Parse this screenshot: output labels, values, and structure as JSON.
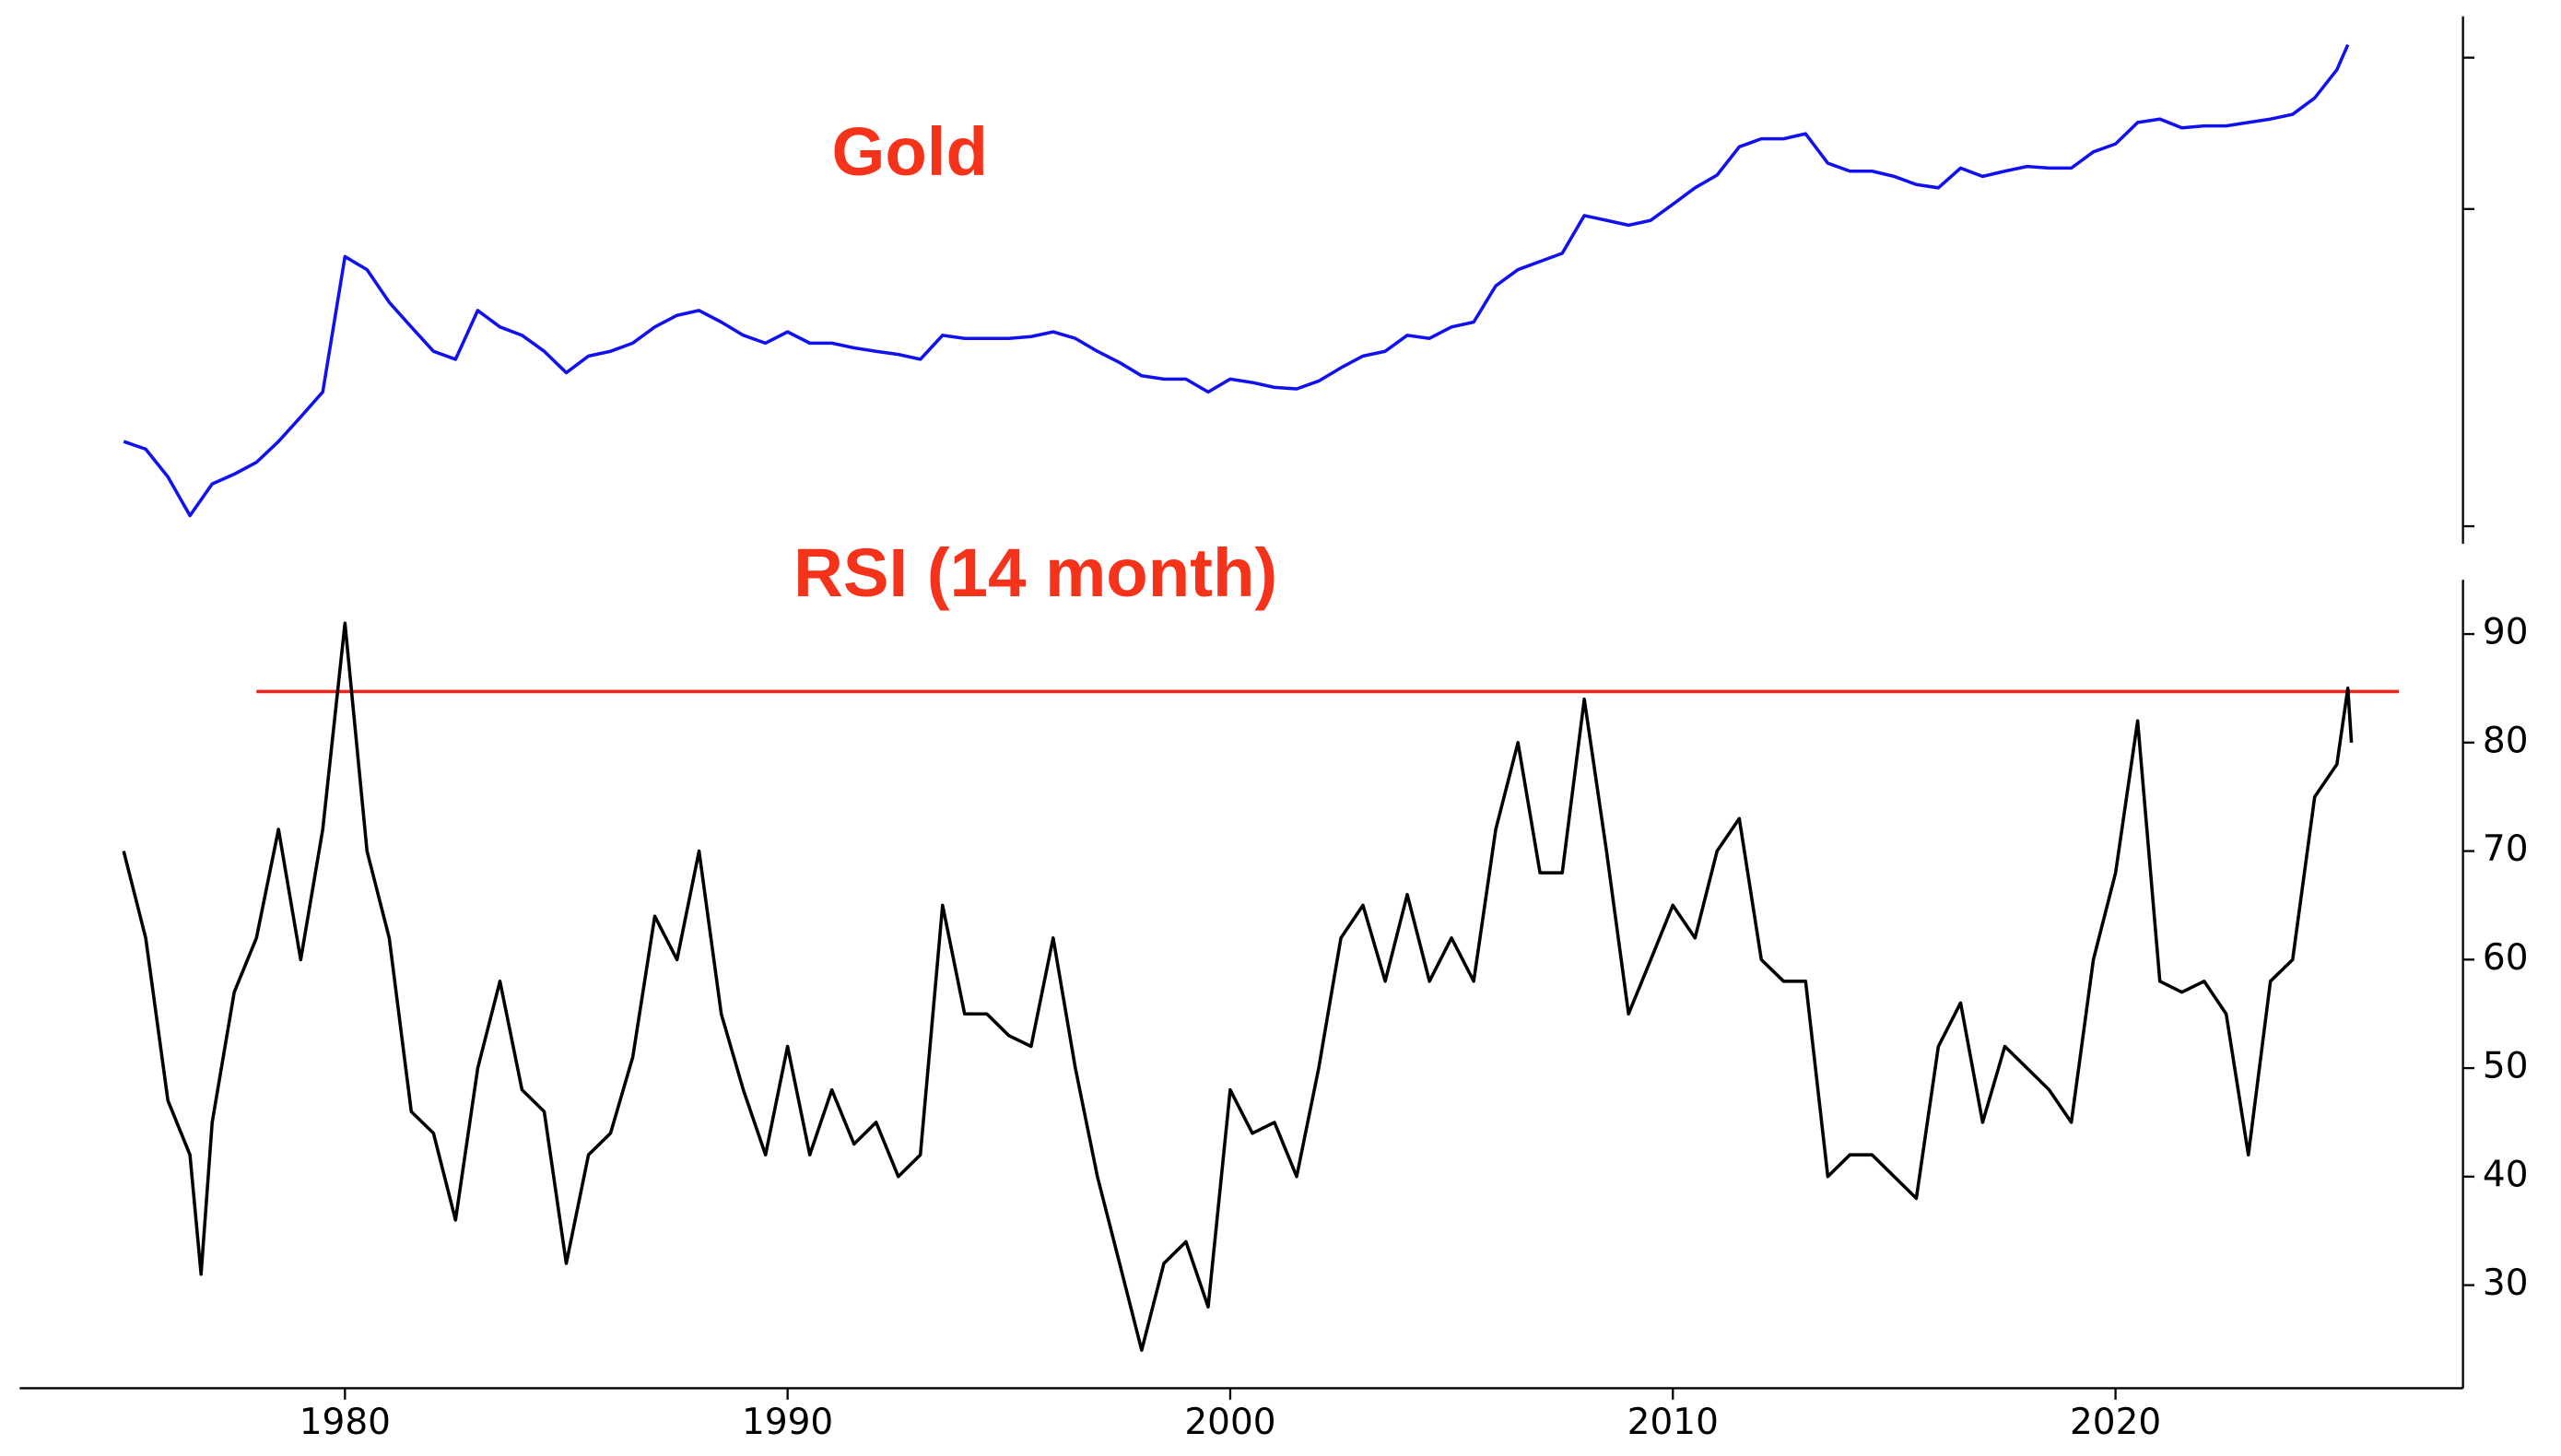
{
  "chart_data": [
    {
      "type": "line",
      "title": "Gold",
      "log_scale": true,
      "show_ytick_labels": false,
      "xlim": [
        1972.65,
        2027.85
      ],
      "ylim": [
        88,
        4050
      ],
      "yticks": [
        100,
        1000,
        3000
      ],
      "x": [
        1975.0,
        1975.5,
        1976.0,
        1976.5,
        1977.0,
        1977.5,
        1978.0,
        1978.5,
        1979.0,
        1979.5,
        1980.0,
        1980.5,
        1981.0,
        1981.5,
        1982.0,
        1982.5,
        1983.0,
        1983.5,
        1984.0,
        1984.5,
        1985.0,
        1985.5,
        1986.0,
        1986.5,
        1987.0,
        1987.5,
        1988.0,
        1988.5,
        1989.0,
        1989.5,
        1990.0,
        1990.5,
        1991.0,
        1991.5,
        1992.0,
        1992.5,
        1993.0,
        1993.5,
        1994.0,
        1994.5,
        1995.0,
        1995.5,
        1996.0,
        1996.5,
        1997.0,
        1997.5,
        1998.0,
        1998.5,
        1999.0,
        1999.5,
        2000.0,
        2000.5,
        2001.0,
        2001.5,
        2002.0,
        2002.5,
        2003.0,
        2003.5,
        2004.0,
        2004.5,
        2005.0,
        2005.5,
        2006.0,
        2006.5,
        2007.0,
        2007.5,
        2008.0,
        2008.5,
        2009.0,
        2009.5,
        2010.0,
        2010.5,
        2011.0,
        2011.5,
        2012.0,
        2012.5,
        2013.0,
        2013.5,
        2014.0,
        2014.5,
        2015.0,
        2015.5,
        2016.0,
        2016.5,
        2017.0,
        2017.5,
        2018.0,
        2018.5,
        2019.0,
        2019.5,
        2020.0,
        2020.5,
        2021.0,
        2021.5,
        2022.0,
        2022.5,
        2023.0,
        2023.5,
        2024.0,
        2024.5,
        2025.0,
        2025.25
      ],
      "series": [
        {
          "name": "Gold",
          "color": "#1010f0",
          "values": [
            185,
            175,
            143,
            108,
            136,
            146,
            159,
            185,
            221,
            265,
            708,
            644,
            508,
            425,
            356,
            336,
            479,
            425,
            400,
            356,
            305,
            344,
            356,
            378,
            425,
            462,
            479,
            440,
            400,
            378,
            410,
            378,
            378,
            365,
            356,
            348,
            336,
            400,
            391,
            391,
            391,
            396,
            410,
            391,
            356,
            328,
            298,
            291,
            291,
            265,
            291,
            284,
            274,
            271,
            287,
            316,
            344,
            356,
            400,
            391,
            425,
            440,
            573,
            644,
            683,
            725,
            954,
            921,
            889,
            921,
            1035,
            1167,
            1280,
            1570,
            1665,
            1665,
            1727,
            1395,
            1316,
            1316,
            1268,
            1194,
            1167,
            1347,
            1268,
            1316,
            1363,
            1347,
            1347,
            1514,
            1604,
            1875,
            1921,
            1803,
            1829,
            1829,
            1875,
            1921,
            1989,
            2238,
            2747,
            3297
          ]
        }
      ]
    },
    {
      "type": "line",
      "title": "RSI (14 month)",
      "xlim": [
        1972.65,
        2027.85
      ],
      "xticks": [
        1980,
        1990,
        2000,
        2010,
        2020
      ],
      "ylim": [
        20.5,
        95
      ],
      "yticks": [
        30,
        40,
        50,
        60,
        70,
        80,
        90
      ],
      "threshold": {
        "y": 84.7,
        "x": [
          1978,
          2026.4
        ],
        "color": "#e8281e"
      },
      "x": [
        1975.0,
        1975.5,
        1976.0,
        1976.5,
        1976.75,
        1977.0,
        1977.5,
        1978.0,
        1978.5,
        1979.0,
        1979.5,
        1980.0,
        1980.5,
        1981.0,
        1981.5,
        1982.0,
        1982.5,
        1983.0,
        1983.5,
        1984.0,
        1984.5,
        1985.0,
        1985.5,
        1986.0,
        1986.5,
        1987.0,
        1987.5,
        1988.0,
        1988.5,
        1989.0,
        1989.5,
        1990.0,
        1990.5,
        1991.0,
        1991.5,
        1992.0,
        1992.5,
        1993.0,
        1993.5,
        1994.0,
        1994.5,
        1995.0,
        1995.5,
        1996.0,
        1996.5,
        1997.0,
        1997.5,
        1998.0,
        1998.5,
        1999.0,
        1999.5,
        2000.0,
        2000.5,
        2001.0,
        2001.5,
        2002.0,
        2002.5,
        2003.0,
        2003.5,
        2004.0,
        2004.5,
        2005.0,
        2005.5,
        2006.0,
        2006.5,
        2007.0,
        2007.5,
        2008.0,
        2008.5,
        2009.0,
        2009.5,
        2010.0,
        2010.5,
        2011.0,
        2011.5,
        2012.0,
        2012.5,
        2013.0,
        2013.5,
        2014.0,
        2014.5,
        2015.0,
        2015.5,
        2016.0,
        2016.5,
        2017.0,
        2017.5,
        2018.0,
        2018.5,
        2019.0,
        2019.5,
        2020.0,
        2020.5,
        2021.0,
        2021.5,
        2022.0,
        2022.5,
        2023.0,
        2023.5,
        2024.0,
        2024.5,
        2025.0,
        2025.25,
        2025.33
      ],
      "series": [
        {
          "name": "RSI",
          "color": "#000000",
          "values": [
            70,
            62,
            47,
            42,
            31,
            45,
            57,
            62,
            72,
            60,
            72,
            91,
            70,
            62,
            46,
            44,
            36,
            50,
            58,
            48,
            46,
            32,
            42,
            44,
            51,
            64,
            60,
            70,
            55,
            48,
            42,
            52,
            42,
            48,
            43,
            45,
            40,
            42,
            65,
            55,
            55,
            53,
            52,
            62,
            50,
            40,
            32,
            24,
            32,
            34,
            28,
            48,
            44,
            45,
            40,
            50,
            62,
            65,
            58,
            66,
            58,
            62,
            58,
            72,
            80,
            68,
            68,
            84,
            70,
            55,
            60,
            65,
            62,
            70,
            73,
            60,
            58,
            58,
            40,
            42,
            42,
            40,
            38,
            52,
            56,
            45,
            52,
            50,
            48,
            45,
            60,
            68,
            82,
            58,
            57,
            58,
            55,
            42,
            58,
            60,
            75,
            78,
            85,
            80
          ]
        }
      ]
    }
  ]
}
